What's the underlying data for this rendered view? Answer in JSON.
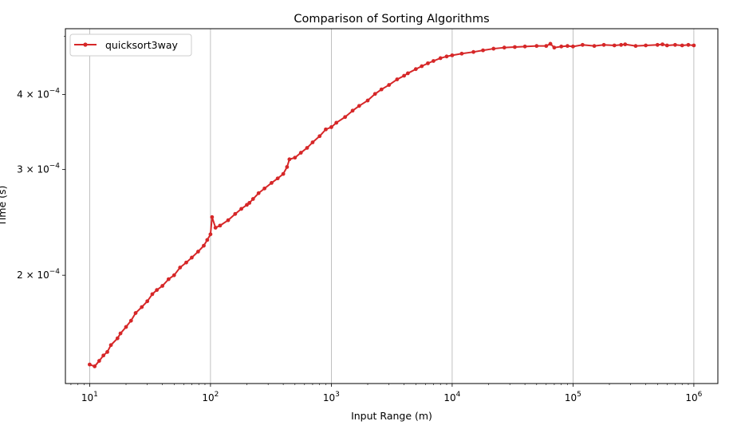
{
  "chart_data": {
    "type": "line",
    "title": "Comparison of Sorting Algorithms",
    "xlabel": "Input Range (m)",
    "ylabel": "Time (s)",
    "x_scale": "log",
    "y_scale": "log",
    "xlim": [
      6.3,
      1580000
    ],
    "ylim": [
      0.000132,
      0.000515
    ],
    "x_ticks": [
      {
        "value": 10,
        "mant": "10",
        "exp": "1"
      },
      {
        "value": 100,
        "mant": "10",
        "exp": "2"
      },
      {
        "value": 1000,
        "mant": "10",
        "exp": "3"
      },
      {
        "value": 10000,
        "mant": "10",
        "exp": "4"
      },
      {
        "value": 100000,
        "mant": "10",
        "exp": "5"
      },
      {
        "value": 1000000,
        "mant": "10",
        "exp": "6"
      }
    ],
    "y_ticks": [
      {
        "value": 0.0002,
        "mant": "2 × 10",
        "exp": "−4"
      },
      {
        "value": 0.0003,
        "mant": "3 × 10",
        "exp": "−4"
      },
      {
        "value": 0.0004,
        "mant": "4 × 10",
        "exp": "−4"
      }
    ],
    "grid": "x-major",
    "legend_position": "upper-left",
    "color": "#d62728",
    "series": [
      {
        "name": "quicksort3way",
        "x": [
          10,
          11,
          12,
          13,
          14,
          15,
          17,
          18,
          20,
          22,
          24,
          27,
          30,
          33,
          36,
          40,
          45,
          50,
          56,
          63,
          70,
          79,
          88,
          94,
          100,
          103,
          110,
          120,
          140,
          160,
          180,
          200,
          210,
          225,
          250,
          280,
          320,
          360,
          400,
          430,
          450,
          500,
          560,
          630,
          700,
          800,
          900,
          1000,
          1100,
          1300,
          1500,
          1700,
          2000,
          2300,
          2600,
          3000,
          3500,
          4000,
          4300,
          5000,
          5600,
          6300,
          7000,
          8000,
          9000,
          10000,
          12000,
          15000,
          18000,
          22000,
          27000,
          33000,
          40000,
          50000,
          60000,
          65000,
          70000,
          80000,
          90000,
          100000,
          120000,
          150000,
          180000,
          220000,
          250000,
          270000,
          330000,
          400000,
          500000,
          550000,
          600000,
          700000,
          800000,
          900000,
          1000000
        ],
        "y": [
          0.000142,
          0.000141,
          0.000144,
          0.000147,
          0.000149,
          0.000153,
          0.000157,
          0.00016,
          0.000164,
          0.000168,
          0.000173,
          0.000177,
          0.000181,
          0.000186,
          0.000189,
          0.000192,
          0.000197,
          0.0002,
          0.000206,
          0.00021,
          0.000214,
          0.000219,
          0.000224,
          0.000229,
          0.000234,
          0.00025,
          0.00024,
          0.000242,
          0.000247,
          0.000253,
          0.000258,
          0.000262,
          0.000264,
          0.000268,
          0.000274,
          0.000279,
          0.000285,
          0.00029,
          0.000295,
          0.000303,
          0.000312,
          0.000314,
          0.00032,
          0.000326,
          0.000333,
          0.000341,
          0.00035,
          0.000353,
          0.000359,
          0.000367,
          0.000376,
          0.000383,
          0.000391,
          0.000401,
          0.000408,
          0.000415,
          0.000424,
          0.00043,
          0.000434,
          0.000441,
          0.000446,
          0.000451,
          0.000455,
          0.00046,
          0.000463,
          0.000465,
          0.000468,
          0.000471,
          0.000474,
          0.000477,
          0.000479,
          0.00048,
          0.000481,
          0.000482,
          0.000482,
          0.000486,
          0.000479,
          0.000481,
          0.000482,
          0.000481,
          0.000484,
          0.000482,
          0.000484,
          0.000483,
          0.000484,
          0.000485,
          0.000482,
          0.000483,
          0.000484,
          0.000485,
          0.000483,
          0.000484,
          0.000483,
          0.000484,
          0.000483
        ]
      }
    ]
  }
}
